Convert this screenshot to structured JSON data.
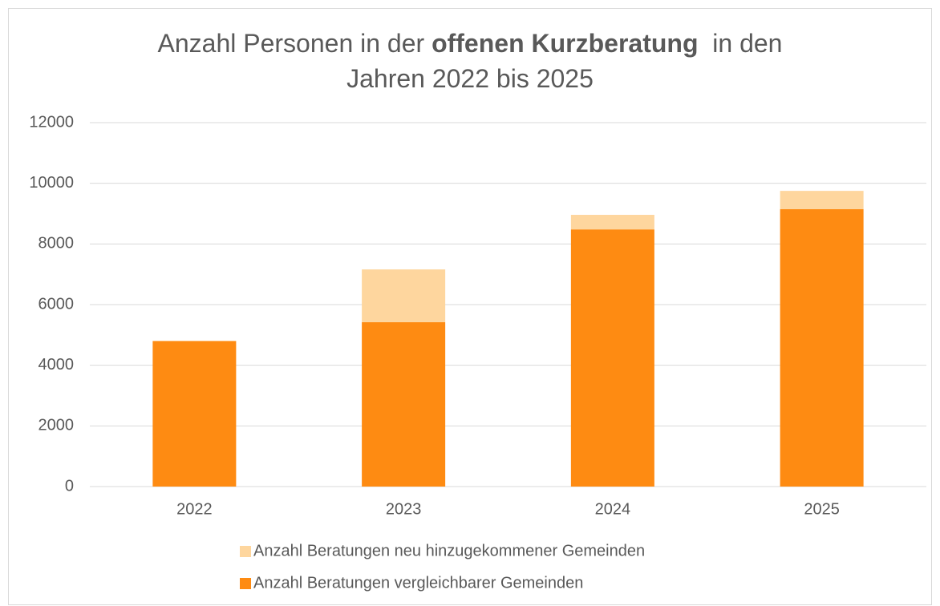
{
  "chart_data": {
    "type": "stacked_bar",
    "title_lines": [
      [
        {
          "text": "Anzahl Personen in der "
        },
        {
          "text": "offenen Kurzberatung",
          "bold": true
        },
        {
          "text": "  in den"
        }
      ],
      [
        {
          "text": "Jahren 2022 bis 2025"
        }
      ]
    ],
    "categories": [
      "2022",
      "2023",
      "2024",
      "2025"
    ],
    "series": [
      {
        "name": "Anzahl Beratungen vergleichbarer Gemeinden",
        "color": "#fe8b12",
        "values": [
          4800,
          5420,
          8480,
          9150
        ]
      },
      {
        "name": "Anzahl Beratungen neu hinzugekommener Gemeinden",
        "color": "#fed69e",
        "values": [
          0,
          1740,
          480,
          600
        ]
      }
    ],
    "ylim": [
      0,
      12000
    ],
    "yticks": [
      0,
      2000,
      4000,
      6000,
      8000,
      10000,
      12000
    ],
    "grid": true
  }
}
